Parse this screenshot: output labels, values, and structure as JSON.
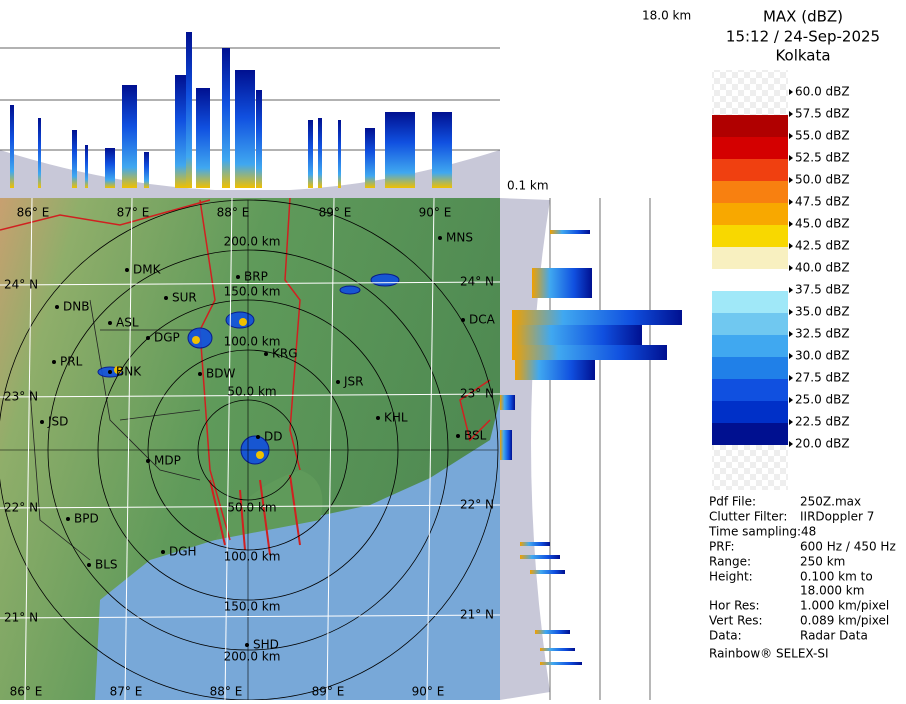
{
  "header": {
    "title": "MAX (dBZ)",
    "time": "15:12 / 24-Sep-2025",
    "station": "Kolkata"
  },
  "profiles": {
    "top_height": "18.0 km",
    "bottom_height": "0.1 km"
  },
  "legend": {
    "levels": [
      "60.0 dBZ",
      "57.5 dBZ",
      "55.0 dBZ",
      "52.5 dBZ",
      "50.0 dBZ",
      "47.5 dBZ",
      "45.0 dBZ",
      "42.5 dBZ",
      "40.0 dBZ",
      "37.5 dBZ",
      "35.0 dBZ",
      "32.5 dBZ",
      "30.0 dBZ",
      "27.5 dBZ",
      "25.0 dBZ",
      "22.5 dBZ",
      "20.0 dBZ"
    ]
  },
  "info": {
    "rows": [
      [
        "Pdf File:",
        "250Z.max"
      ],
      [
        "Clutter Filter:",
        "IIRDoppler 7"
      ],
      [
        "Time sampling:48"
      ],
      [
        "PRF:",
        "600 Hz / 450 Hz"
      ],
      [
        "Range:",
        "250 km"
      ],
      [
        "Height:",
        "0.100 km to"
      ],
      [
        "18.000 km"
      ],
      [
        "Hor Res:",
        "1.000 km/pixel"
      ],
      [
        "Vert Res:",
        "0.089 km/pixel"
      ],
      [
        "Data:",
        "Radar Data"
      ]
    ],
    "footer": "Rainbow® SELEX-SI"
  },
  "map": {
    "lon_labels": [
      "86° E",
      "87° E",
      "88° E",
      "89° E",
      "90° E"
    ],
    "lat_labels": [
      "24° N",
      "23° N",
      "22° N",
      "21° N"
    ],
    "range_labels_north": [
      "50.0 km",
      "100.0 km",
      "150.0 km",
      "200.0 km"
    ],
    "range_labels_south": [
      "50.0 km",
      "100.0 km",
      "150.0 km",
      "200.0 km"
    ],
    "cities": [
      "MNS",
      "DMK",
      "BRP",
      "DNB",
      "SUR",
      "ASL",
      "DCA",
      "DGP",
      "PRL",
      "KRG",
      "BNK",
      "BDW",
      "JSR",
      "KHL",
      "JSD",
      "DD",
      "BSL",
      "MDP",
      "BPD",
      "DGH",
      "BLS",
      "SHD"
    ]
  }
}
